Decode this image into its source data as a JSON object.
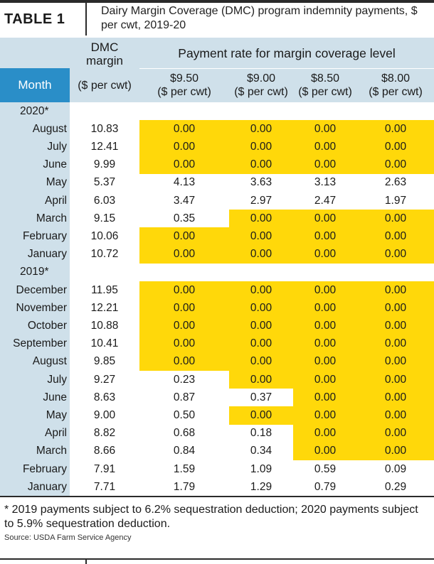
{
  "table_label": "TABLE 1",
  "title": "Dairy Margin Coverage (DMC) program indemnity payments, $ per cwt, 2019-20",
  "headers": {
    "dmc_line1": "DMC",
    "dmc_line2": "margin",
    "rate_group": "Payment rate for margin coverage level",
    "month": "Month",
    "dmc_unit": "($ per cwt)",
    "levels": [
      {
        "amount": "$9.50",
        "unit": "($ per cwt)"
      },
      {
        "amount": "$9.00",
        "unit": "($ per cwt)"
      },
      {
        "amount": "$8.50",
        "unit": "($ per cwt)"
      },
      {
        "amount": "$8.00",
        "unit": "($ per cwt)"
      }
    ]
  },
  "highlight_color": "#ffd80a",
  "header_color": "#cfe0ea",
  "month_header_color": "#2a8ec8",
  "rows": [
    {
      "type": "year",
      "label": "2020*"
    },
    {
      "type": "data",
      "month": "August",
      "dmc": "10.83",
      "rates": [
        "0.00",
        "0.00",
        "0.00",
        "0.00"
      ],
      "hl": [
        true,
        true,
        true,
        true
      ]
    },
    {
      "type": "data",
      "month": "July",
      "dmc": "12.41",
      "rates": [
        "0.00",
        "0.00",
        "0.00",
        "0.00"
      ],
      "hl": [
        true,
        true,
        true,
        true
      ]
    },
    {
      "type": "data",
      "month": "June",
      "dmc": "9.99",
      "rates": [
        "0.00",
        "0.00",
        "0.00",
        "0.00"
      ],
      "hl": [
        true,
        true,
        true,
        true
      ]
    },
    {
      "type": "data",
      "month": "May",
      "dmc": "5.37",
      "rates": [
        "4.13",
        "3.63",
        "3.13",
        "2.63"
      ],
      "hl": [
        false,
        false,
        false,
        false
      ]
    },
    {
      "type": "data",
      "month": "April",
      "dmc": "6.03",
      "rates": [
        "3.47",
        "2.97",
        "2.47",
        "1.97"
      ],
      "hl": [
        false,
        false,
        false,
        false
      ]
    },
    {
      "type": "data",
      "month": "March",
      "dmc": "9.15",
      "rates": [
        "0.35",
        "0.00",
        "0.00",
        "0.00"
      ],
      "hl": [
        false,
        true,
        true,
        true
      ]
    },
    {
      "type": "data",
      "month": "February",
      "dmc": "10.06",
      "rates": [
        "0.00",
        "0.00",
        "0.00",
        "0.00"
      ],
      "hl": [
        true,
        true,
        true,
        true
      ]
    },
    {
      "type": "data",
      "month": "January",
      "dmc": "10.72",
      "rates": [
        "0.00",
        "0.00",
        "0.00",
        "0.00"
      ],
      "hl": [
        true,
        true,
        true,
        true
      ]
    },
    {
      "type": "year",
      "label": "2019*"
    },
    {
      "type": "data",
      "month": "December",
      "dmc": "11.95",
      "rates": [
        "0.00",
        "0.00",
        "0.00",
        "0.00"
      ],
      "hl": [
        true,
        true,
        true,
        true
      ]
    },
    {
      "type": "data",
      "month": "November",
      "dmc": "12.21",
      "rates": [
        "0.00",
        "0.00",
        "0.00",
        "0.00"
      ],
      "hl": [
        true,
        true,
        true,
        true
      ]
    },
    {
      "type": "data",
      "month": "October",
      "dmc": "10.88",
      "rates": [
        "0.00",
        "0.00",
        "0.00",
        "0.00"
      ],
      "hl": [
        true,
        true,
        true,
        true
      ]
    },
    {
      "type": "data",
      "month": "September",
      "dmc": "10.41",
      "rates": [
        "0.00",
        "0.00",
        "0.00",
        "0.00"
      ],
      "hl": [
        true,
        true,
        true,
        true
      ]
    },
    {
      "type": "data",
      "month": "August",
      "dmc": "9.85",
      "rates": [
        "0.00",
        "0.00",
        "0.00",
        "0.00"
      ],
      "hl": [
        true,
        true,
        true,
        true
      ]
    },
    {
      "type": "data",
      "month": "July",
      "dmc": "9.27",
      "rates": [
        "0.23",
        "0.00",
        "0.00",
        "0.00"
      ],
      "hl": [
        false,
        true,
        true,
        true
      ]
    },
    {
      "type": "data",
      "month": "June",
      "dmc": "8.63",
      "rates": [
        "0.87",
        "0.37",
        "0.00",
        "0.00"
      ],
      "hl": [
        false,
        false,
        true,
        true
      ]
    },
    {
      "type": "data",
      "month": "May",
      "dmc": "9.00",
      "rates": [
        "0.50",
        "0.00",
        "0.00",
        "0.00"
      ],
      "hl": [
        false,
        true,
        true,
        true
      ]
    },
    {
      "type": "data",
      "month": "April",
      "dmc": "8.82",
      "rates": [
        "0.68",
        "0.18",
        "0.00",
        "0.00"
      ],
      "hl": [
        false,
        false,
        true,
        true
      ]
    },
    {
      "type": "data",
      "month": "March",
      "dmc": "8.66",
      "rates": [
        "0.84",
        "0.34",
        "0.00",
        "0.00"
      ],
      "hl": [
        false,
        false,
        true,
        true
      ]
    },
    {
      "type": "data",
      "month": "February",
      "dmc": "7.91",
      "rates": [
        "1.59",
        "1.09",
        "0.59",
        "0.09"
      ],
      "hl": [
        false,
        false,
        false,
        false
      ]
    },
    {
      "type": "data",
      "month": "January",
      "dmc": "7.71",
      "rates": [
        "1.79",
        "1.29",
        "0.79",
        "0.29"
      ],
      "hl": [
        false,
        false,
        false,
        false
      ]
    }
  ],
  "footnote": "* 2019 payments subject to 6.2% sequestration deduction; 2020 payments subject to 5.9% sequestration deduction.",
  "source": "Source: USDA Farm Service Agency"
}
